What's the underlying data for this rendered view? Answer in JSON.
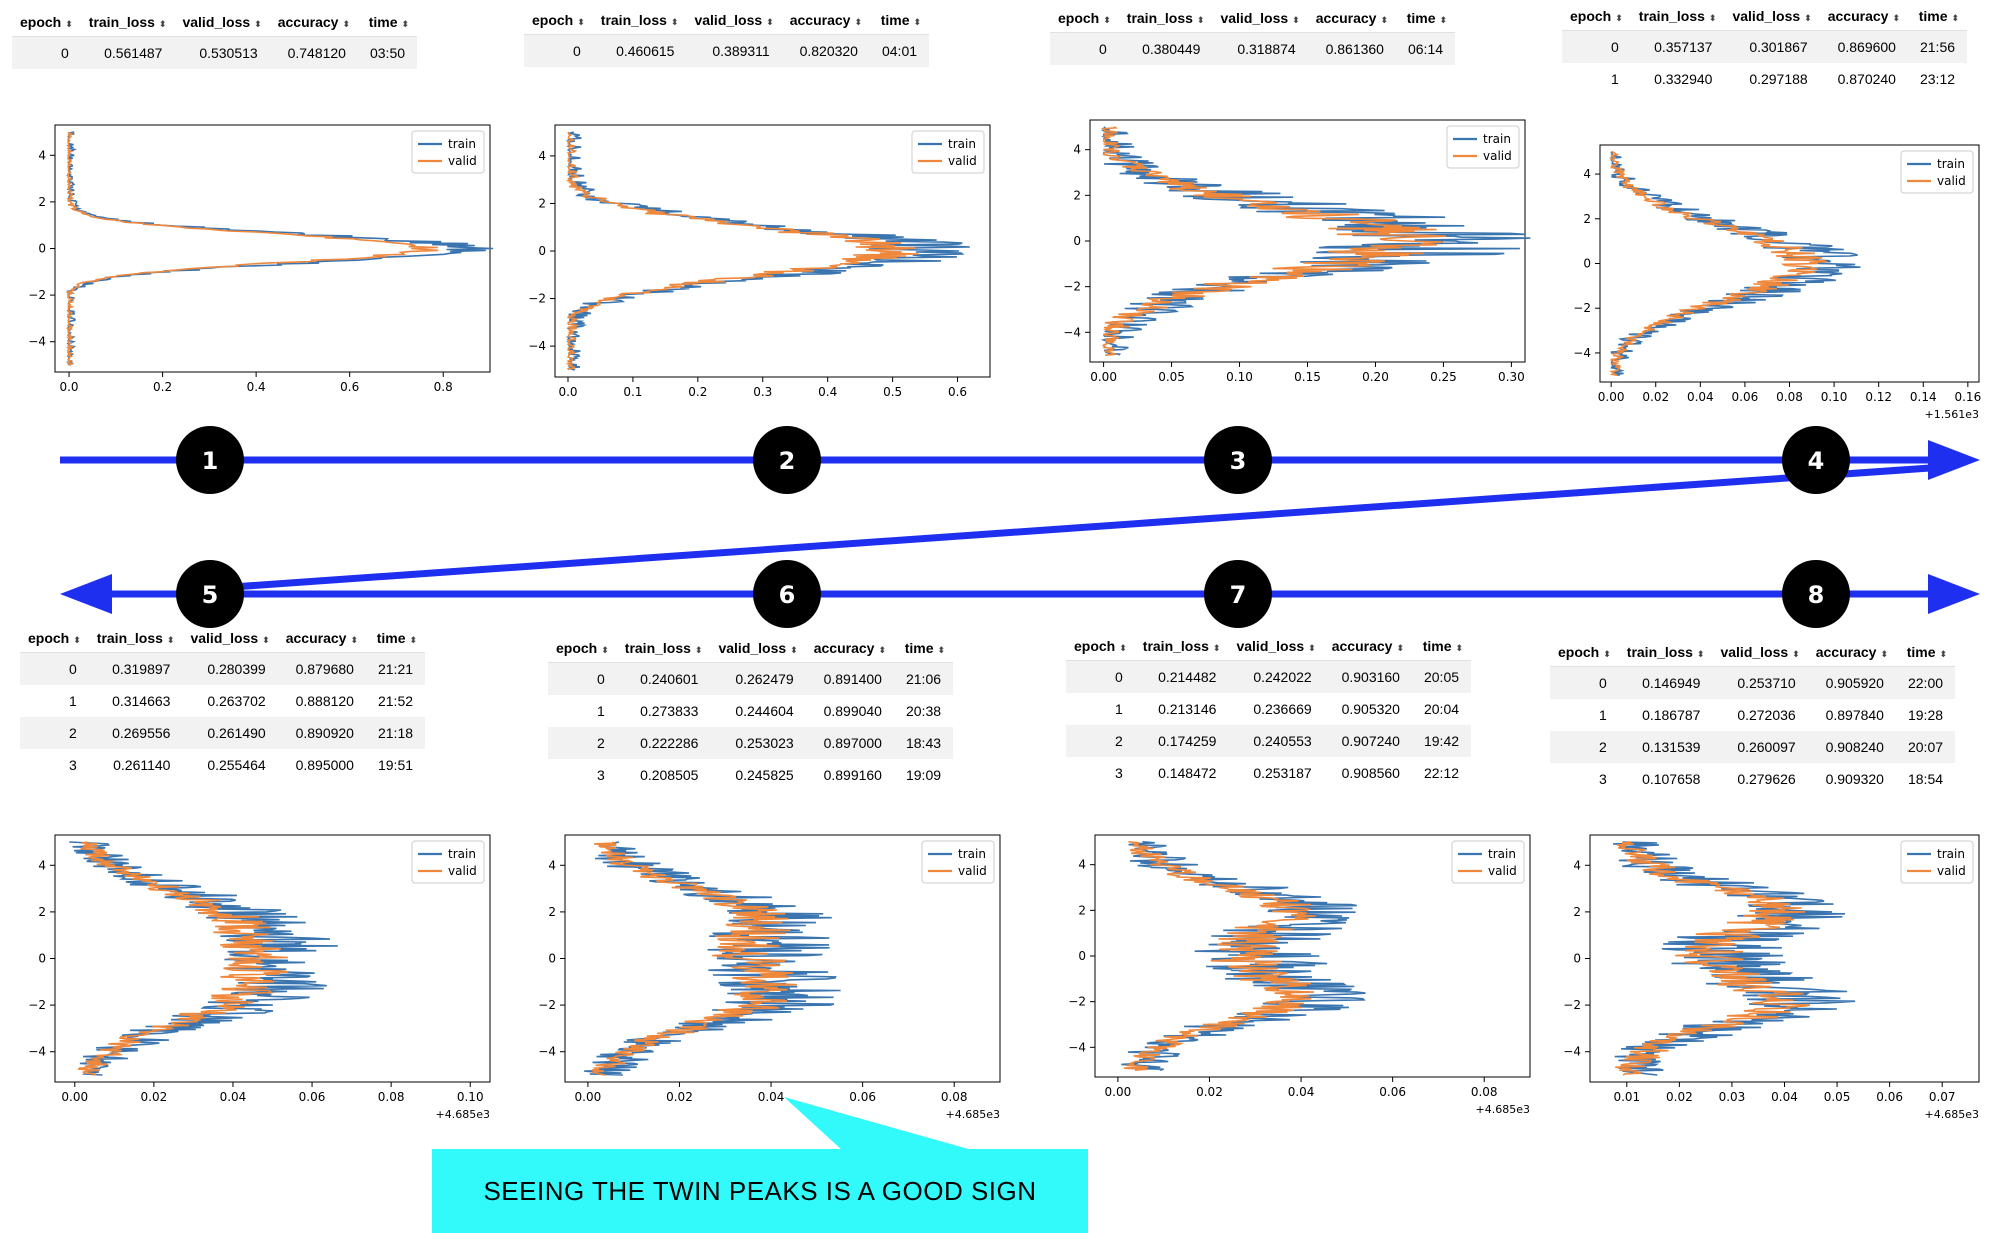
{
  "columns": [
    "epoch",
    "train_loss",
    "valid_loss",
    "accuracy",
    "time"
  ],
  "legend": [
    "train",
    "valid"
  ],
  "colors": {
    "train": "#3a75b0",
    "valid": "#f0883c",
    "arrow": "#1f2ff0",
    "badge": "#000000",
    "callout": "#33fafa"
  },
  "annotation": "SEEING THE TWIN PEAKS IS A GOOD SIGN",
  "panels": [
    {
      "step": "1",
      "rows": [
        [
          "0",
          "0.561487",
          "0.530513",
          "0.748120",
          "03:50"
        ]
      ],
      "chart_data": {
        "type": "line",
        "series": [
          {
            "name": "train"
          },
          {
            "name": "valid"
          }
        ],
        "xlim": [
          -0.03,
          0.9
        ],
        "ylim": [
          -5.3,
          5.3
        ],
        "xticks": [
          "0.0",
          "0.2",
          "0.4",
          "0.6",
          "0.8"
        ],
        "yticks": [
          "4",
          "2",
          "0",
          "-2",
          "-4"
        ],
        "x_offset": "",
        "legend": "top-right",
        "profile": {
          "amp": 0.85,
          "sigma": 0.6,
          "bimodal": 0,
          "noise": 0.05
        }
      }
    },
    {
      "step": "2",
      "rows": [
        [
          "0",
          "0.460615",
          "0.389311",
          "0.820320",
          "04:01"
        ]
      ],
      "chart_data": {
        "type": "line",
        "series": [
          {
            "name": "train"
          },
          {
            "name": "valid"
          }
        ],
        "xlim": [
          -0.02,
          0.65
        ],
        "ylim": [
          -5.3,
          5.3
        ],
        "xticks": [
          "0.0",
          "0.1",
          "0.2",
          "0.3",
          "0.4",
          "0.5",
          "0.6"
        ],
        "yticks": [
          "4",
          "2",
          "0",
          "-2",
          "-4"
        ],
        "x_offset": "",
        "legend": "top-right",
        "profile": {
          "amp": 0.55,
          "sigma": 1.0,
          "bimodal": 0,
          "noise": 0.07
        }
      }
    },
    {
      "step": "3",
      "rows": [
        [
          "0",
          "0.380449",
          "0.318874",
          "0.861360",
          "06:14"
        ]
      ],
      "chart_data": {
        "type": "line",
        "series": [
          {
            "name": "train"
          },
          {
            "name": "valid"
          }
        ],
        "xlim": [
          -0.01,
          0.31
        ],
        "ylim": [
          -5.3,
          5.3
        ],
        "xticks": [
          "0.00",
          "0.05",
          "0.10",
          "0.15",
          "0.20",
          "0.25",
          "0.30"
        ],
        "yticks": [
          "4",
          "2",
          "0",
          "-2",
          "-4"
        ],
        "x_offset": "",
        "legend": "top-right",
        "profile": {
          "amp": 0.24,
          "sigma": 1.5,
          "bimodal": 0,
          "noise": 0.06
        }
      }
    },
    {
      "step": "4",
      "rows": [
        [
          "0",
          "0.357137",
          "0.301867",
          "0.869600",
          "21:56"
        ],
        [
          "1",
          "0.332940",
          "0.297188",
          "0.870240",
          "23:12"
        ]
      ],
      "chart_data": {
        "type": "line",
        "series": [
          {
            "name": "train"
          },
          {
            "name": "valid"
          }
        ],
        "xlim": [
          -0.005,
          0.165
        ],
        "ylim": [
          -5.3,
          5.3
        ],
        "xticks": [
          "0.00",
          "0.02",
          "0.04",
          "0.06",
          "0.08",
          "0.10",
          "0.12",
          "0.14",
          "0.16"
        ],
        "yticks": [
          "4",
          "2",
          "0",
          "-2",
          "-4"
        ],
        "x_offset": "+1.561e3",
        "legend": "top-right",
        "profile": {
          "amp": 0.095,
          "sigma": 1.6,
          "bimodal": 0,
          "noise": 0.015
        }
      }
    },
    {
      "step": "5",
      "rows": [
        [
          "0",
          "0.319897",
          "0.280399",
          "0.879680",
          "21:21"
        ],
        [
          "1",
          "0.314663",
          "0.263702",
          "0.888120",
          "21:52"
        ],
        [
          "2",
          "0.269556",
          "0.261490",
          "0.890920",
          "21:18"
        ],
        [
          "3",
          "0.261140",
          "0.255464",
          "0.895000",
          "19:51"
        ]
      ],
      "chart_data": {
        "type": "line",
        "series": [
          {
            "name": "train"
          },
          {
            "name": "valid"
          }
        ],
        "xlim": [
          -0.005,
          0.105
        ],
        "ylim": [
          -5.3,
          5.3
        ],
        "xticks": [
          "0.00",
          "0.02",
          "0.04",
          "0.06",
          "0.08",
          "0.10"
        ],
        "yticks": [
          "4",
          "2",
          "0",
          "-2",
          "-4"
        ],
        "x_offset": "+4.685e3",
        "legend": "top-right",
        "profile": {
          "amp": 0.058,
          "sigma": 2.3,
          "bimodal": 0.15,
          "noise": 0.013
        }
      }
    },
    {
      "step": "6",
      "rows": [
        [
          "0",
          "0.240601",
          "0.262479",
          "0.891400",
          "21:06"
        ],
        [
          "1",
          "0.273833",
          "0.244604",
          "0.899040",
          "20:38"
        ],
        [
          "2",
          "0.222286",
          "0.253023",
          "0.897000",
          "18:43"
        ],
        [
          "3",
          "0.208505",
          "0.245825",
          "0.899160",
          "19:09"
        ]
      ],
      "chart_data": {
        "type": "line",
        "series": [
          {
            "name": "train"
          },
          {
            "name": "valid"
          }
        ],
        "xlim": [
          -0.005,
          0.09
        ],
        "ylim": [
          -5.3,
          5.3
        ],
        "xticks": [
          "0.00",
          "0.02",
          "0.04",
          "0.06",
          "0.08"
        ],
        "yticks": [
          "4",
          "2",
          "0",
          "-2",
          "-4"
        ],
        "x_offset": "+4.685e3",
        "legend": "top-right",
        "profile": {
          "amp": 0.05,
          "sigma": 2.5,
          "bimodal": 0.3,
          "noise": 0.012
        }
      }
    },
    {
      "step": "7",
      "rows": [
        [
          "0",
          "0.214482",
          "0.242022",
          "0.903160",
          "20:05"
        ],
        [
          "1",
          "0.213146",
          "0.236669",
          "0.905320",
          "20:04"
        ],
        [
          "2",
          "0.174259",
          "0.240553",
          "0.907240",
          "19:42"
        ],
        [
          "3",
          "0.148472",
          "0.253187",
          "0.908560",
          "22:12"
        ]
      ],
      "chart_data": {
        "type": "line",
        "series": [
          {
            "name": "train"
          },
          {
            "name": "valid"
          }
        ],
        "xlim": [
          -0.005,
          0.09
        ],
        "ylim": [
          -5.3,
          5.3
        ],
        "xticks": [
          "0.00",
          "0.02",
          "0.04",
          "0.06",
          "0.08"
        ],
        "yticks": [
          "4",
          "2",
          "0",
          "-2",
          "-4"
        ],
        "x_offset": "+4.685e3",
        "legend": "top-right",
        "profile": {
          "amp": 0.045,
          "sigma": 2.8,
          "bimodal": 0.5,
          "noise": 0.011
        }
      }
    },
    {
      "step": "8",
      "rows": [
        [
          "0",
          "0.146949",
          "0.253710",
          "0.905920",
          "22:00"
        ],
        [
          "1",
          "0.186787",
          "0.272036",
          "0.897840",
          "19:28"
        ],
        [
          "2",
          "0.131539",
          "0.260097",
          "0.908240",
          "20:07"
        ],
        [
          "3",
          "0.107658",
          "0.279626",
          "0.909320",
          "18:54"
        ]
      ],
      "chart_data": {
        "type": "line",
        "series": [
          {
            "name": "train"
          },
          {
            "name": "valid"
          }
        ],
        "xlim": [
          0.003,
          0.077
        ],
        "ylim": [
          -5.3,
          5.3
        ],
        "xticks": [
          "0.01",
          "0.02",
          "0.03",
          "0.04",
          "0.05",
          "0.06",
          "0.07"
        ],
        "yticks": [
          "4",
          "2",
          "0",
          "-2",
          "-4"
        ],
        "x_offset": "+4.685e3",
        "legend": "top-right",
        "profile": {
          "amp": 0.035,
          "sigma": 3.0,
          "bimodal": 0.65,
          "noise": 0.01
        }
      }
    }
  ]
}
